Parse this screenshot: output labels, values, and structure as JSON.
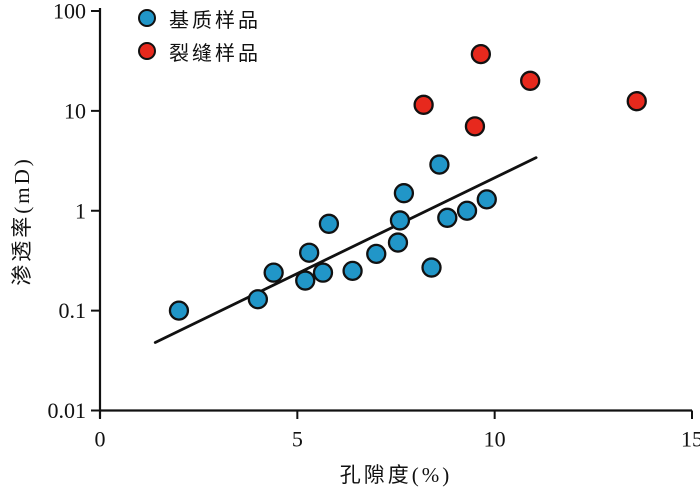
{
  "style": {
    "background": "#ffffff",
    "axis_color": "#111111",
    "marker_stroke": "#111111",
    "marker_radius": 9,
    "matrix_color": "#2196C8",
    "fracture_color": "#E7291D"
  },
  "legend": {
    "items": [
      {
        "label": "基质样品",
        "color": "#2196C8"
      },
      {
        "label": "裂缝样品",
        "color": "#E7291D"
      }
    ]
  },
  "chart_data": {
    "type": "scatter",
    "title": "",
    "xlabel": "孔隙度(%)",
    "ylabel": "渗透率(mD)",
    "grid": false,
    "legend_position": "inside-top-left",
    "x_axis": {
      "scale": "linear",
      "min": 0,
      "max": 15,
      "ticks": [
        0,
        5,
        10,
        15
      ],
      "tick_labels": [
        "0",
        "5",
        "10",
        "15"
      ]
    },
    "y_axis": {
      "scale": "log",
      "min": 0.01,
      "max": 100,
      "ticks": [
        0.01,
        0.1,
        1,
        10,
        100
      ],
      "tick_labels": [
        "0.01",
        "0.1",
        "1",
        "10",
        "100"
      ]
    },
    "series": [
      {
        "name": "基质样品",
        "marker": "circle",
        "color": "#2196C8",
        "points": [
          [
            2.0,
            0.1
          ],
          [
            4.0,
            0.13
          ],
          [
            4.4,
            0.24
          ],
          [
            5.2,
            0.2
          ],
          [
            5.3,
            0.38
          ],
          [
            5.65,
            0.24
          ],
          [
            5.8,
            0.74
          ],
          [
            6.4,
            0.25
          ],
          [
            7.0,
            0.37
          ],
          [
            7.55,
            0.48
          ],
          [
            7.6,
            0.8
          ],
          [
            7.7,
            1.5
          ],
          [
            8.4,
            0.27
          ],
          [
            8.6,
            2.9
          ],
          [
            8.8,
            0.85
          ],
          [
            9.3,
            1.0
          ],
          [
            9.8,
            1.3
          ]
        ]
      },
      {
        "name": "裂缝样品",
        "marker": "circle",
        "color": "#E7291D",
        "points": [
          [
            8.2,
            11.5
          ],
          [
            9.5,
            7.0
          ],
          [
            9.65,
            37.0
          ],
          [
            10.9,
            20.0
          ],
          [
            13.6,
            12.5
          ]
        ]
      }
    ],
    "trend_line": {
      "x_start": 1.4,
      "y_start": 0.048,
      "x_end": 11.05,
      "y_end": 3.4,
      "color": "#111111"
    }
  }
}
